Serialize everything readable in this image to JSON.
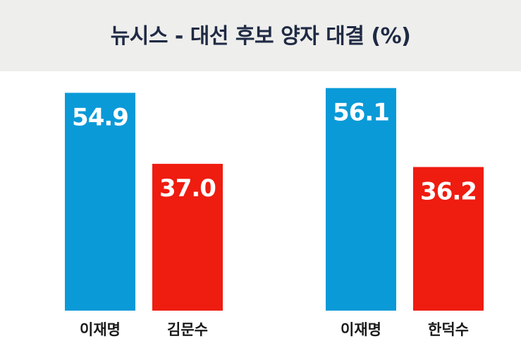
{
  "title": "뉴시스 - 대선 후보 양자 대결 (%)",
  "colors": {
    "header_bg": "#eeeeec",
    "title_text": "#1f2a44",
    "blue": "#0a9ad8",
    "red": "#ef1c10",
    "label_text": "#1a1a1a"
  },
  "chart_data": {
    "type": "bar",
    "title": "뉴시스 - 대선 후보 양자 대결 (%)",
    "ylim": [
      0,
      64
    ],
    "grid": false,
    "groups": [
      {
        "bars": [
          {
            "label": "이재명",
            "value": 54.9,
            "value_label": "54.9",
            "color": "#0a9ad8"
          },
          {
            "label": "김문수",
            "value": 37.0,
            "value_label": "37.0",
            "color": "#ef1c10"
          }
        ]
      },
      {
        "bars": [
          {
            "label": "이재명",
            "value": 56.1,
            "value_label": "56.1",
            "color": "#0a9ad8"
          },
          {
            "label": "한덕수",
            "value": 36.2,
            "value_label": "36.2",
            "color": "#ef1c10"
          }
        ]
      }
    ]
  }
}
